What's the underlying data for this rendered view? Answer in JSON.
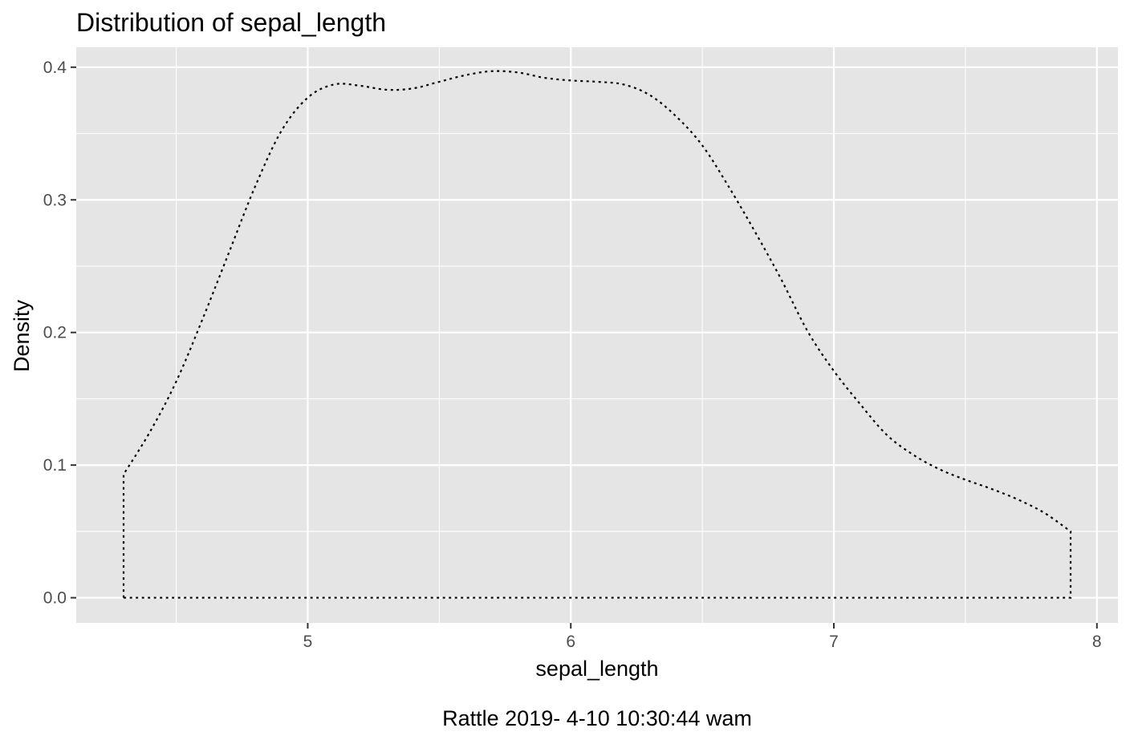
{
  "chart_data": {
    "type": "area",
    "title": "Distribution of sepal_length",
    "xlabel": "sepal_length",
    "ylabel": "Density",
    "caption": "Rattle 2019- 4-10 10:30:44 wam",
    "xlim": [
      4.12,
      8.08
    ],
    "ylim": [
      -0.019,
      0.415
    ],
    "x_ticks": [
      5,
      6,
      7,
      8
    ],
    "x_tick_labels": [
      "5",
      "6",
      "7",
      "8"
    ],
    "x_minor_ticks": [
      4.5,
      5.5,
      6.5,
      7.5
    ],
    "y_ticks": [
      0.0,
      0.1,
      0.2,
      0.3,
      0.4
    ],
    "y_tick_labels": [
      "0.0",
      "0.1",
      "0.2",
      "0.3",
      "0.4"
    ],
    "y_minor_ticks": [
      0.05,
      0.15,
      0.25,
      0.35
    ],
    "grid": true,
    "line_style": "dotted",
    "fill": "none",
    "series": [
      {
        "x": [
          4.3,
          4.4,
          4.5,
          4.6,
          4.7,
          4.8,
          4.9,
          5.0,
          5.1,
          5.2,
          5.3,
          5.4,
          5.5,
          5.6,
          5.7,
          5.8,
          5.9,
          6.0,
          6.1,
          6.2,
          6.3,
          6.4,
          6.5,
          6.6,
          6.7,
          6.8,
          6.9,
          7.0,
          7.1,
          7.2,
          7.3,
          7.4,
          7.5,
          7.6,
          7.7,
          7.8,
          7.9
        ],
        "y": [
          0.093,
          0.125,
          0.163,
          0.21,
          0.26,
          0.31,
          0.352,
          0.377,
          0.387,
          0.386,
          0.383,
          0.384,
          0.389,
          0.394,
          0.397,
          0.396,
          0.392,
          0.39,
          0.389,
          0.387,
          0.379,
          0.363,
          0.341,
          0.31,
          0.276,
          0.24,
          0.201,
          0.171,
          0.146,
          0.123,
          0.108,
          0.097,
          0.089,
          0.082,
          0.074,
          0.064,
          0.05
        ]
      }
    ]
  }
}
